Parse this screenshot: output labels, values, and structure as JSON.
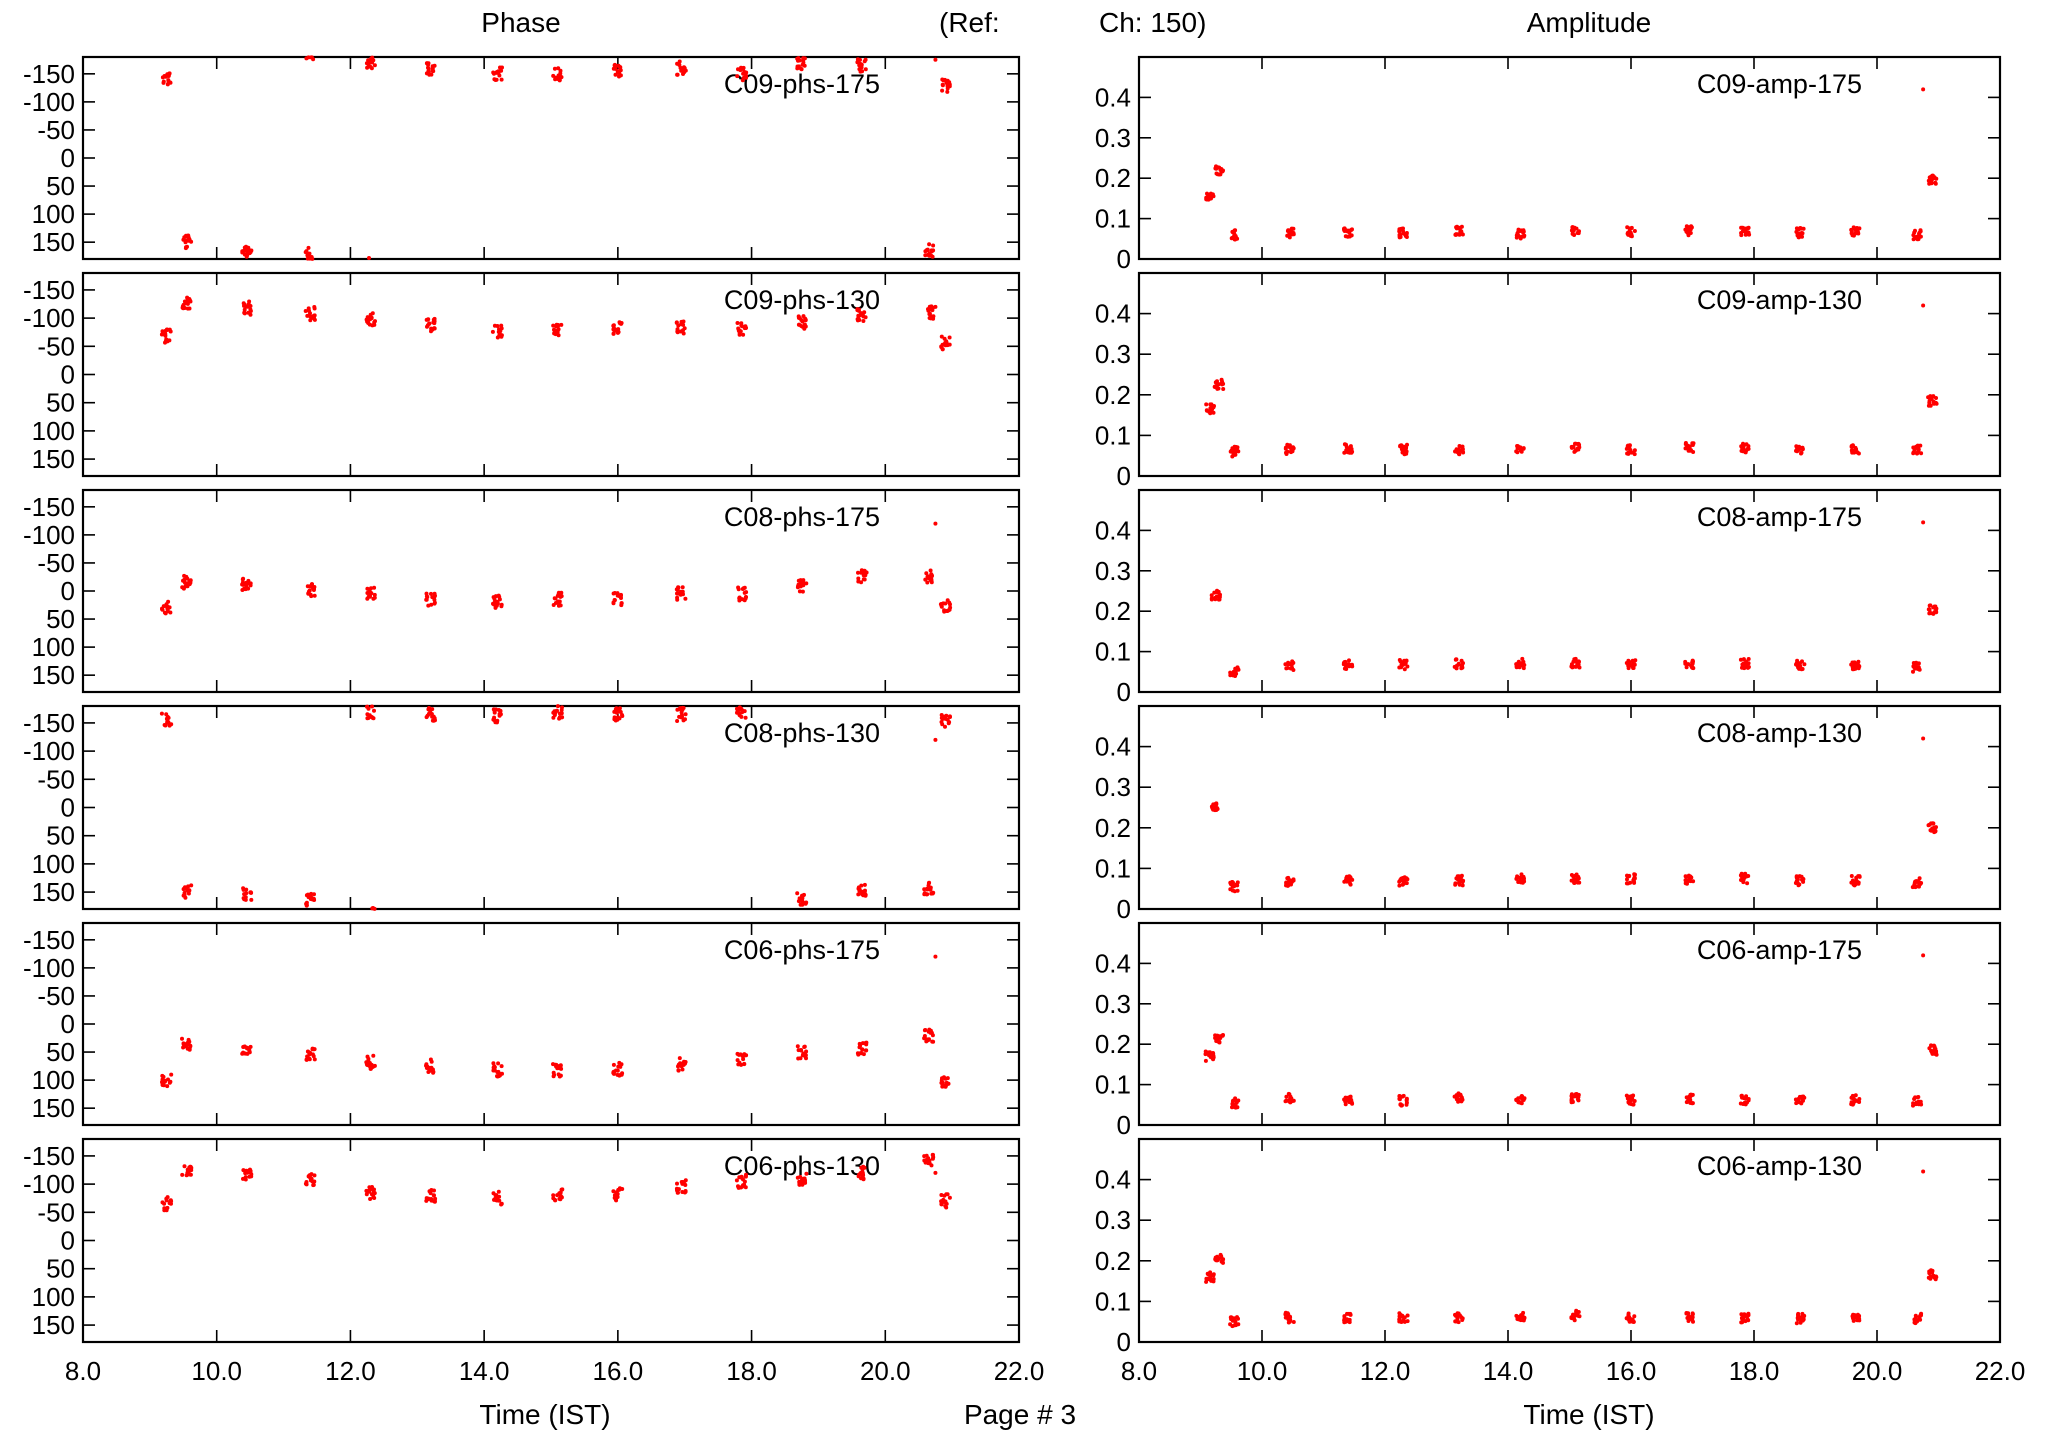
{
  "header": {
    "left_title": "Phase",
    "ref_label": "(Ref:",
    "ref_channel": "Ch: 150)",
    "right_title": "Amplitude",
    "page_label": "Page # 3"
  },
  "colors": {
    "points": "#ff0000",
    "axes": "#000000"
  },
  "chart_data": [
    {
      "type": "scatter",
      "label": "C09-phs-175",
      "xlabel": "Time (IST)",
      "xlim": [
        8.0,
        22.0
      ],
      "ylim": [
        -180,
        180
      ],
      "y_inverted": true,
      "xticks": [
        "8.0",
        "10.0",
        "12.0",
        "14.0",
        "16.0",
        "18.0",
        "20.0",
        "22.0"
      ],
      "yticks": [
        "-150",
        "-100",
        "-50",
        "0",
        "50",
        "100",
        "150"
      ],
      "clusters": [
        {
          "x": 9.25,
          "y": -143
        },
        {
          "x": 9.55,
          "y": 150
        },
        {
          "x": 10.45,
          "y": 165
        },
        {
          "x": 11.4,
          "y": 172
        },
        {
          "x": 12.3,
          "y": -170
        },
        {
          "x": 13.2,
          "y": -160
        },
        {
          "x": 14.2,
          "y": -150
        },
        {
          "x": 15.1,
          "y": -150
        },
        {
          "x": 16.0,
          "y": -155
        },
        {
          "x": 16.95,
          "y": -160
        },
        {
          "x": 17.85,
          "y": -150
        },
        {
          "x": 18.75,
          "y": -168
        },
        {
          "x": 19.65,
          "y": -165
        },
        {
          "x": 20.65,
          "y": 165
        },
        {
          "x": 20.9,
          "y": -128
        }
      ],
      "outlier": {
        "x": 20.75,
        "y": -175
      }
    },
    {
      "type": "scatter",
      "label": "C09-phs-130",
      "xlabel": "Time (IST)",
      "xlim": [
        8.0,
        22.0
      ],
      "ylim": [
        -180,
        180
      ],
      "y_inverted": true,
      "xticks": [
        "8.0",
        "10.0",
        "12.0",
        "14.0",
        "16.0",
        "18.0",
        "20.0",
        "22.0"
      ],
      "yticks": [
        "-150",
        "-100",
        "-50",
        "0",
        "50",
        "100",
        "150"
      ],
      "clusters": [
        {
          "x": 9.25,
          "y": -68
        },
        {
          "x": 9.55,
          "y": -125
        },
        {
          "x": 10.45,
          "y": -118
        },
        {
          "x": 11.4,
          "y": -108
        },
        {
          "x": 12.3,
          "y": -98
        },
        {
          "x": 13.2,
          "y": -88
        },
        {
          "x": 14.2,
          "y": -75
        },
        {
          "x": 15.1,
          "y": -80
        },
        {
          "x": 16.0,
          "y": -82
        },
        {
          "x": 16.95,
          "y": -82
        },
        {
          "x": 17.85,
          "y": -80
        },
        {
          "x": 18.75,
          "y": -92
        },
        {
          "x": 19.65,
          "y": -105
        },
        {
          "x": 20.65,
          "y": -110
        },
        {
          "x": 20.9,
          "y": -56
        }
      ],
      "outlier": {
        "x": 20.75,
        "y": -120
      }
    },
    {
      "type": "scatter",
      "label": "C08-phs-175",
      "xlabel": "Time (IST)",
      "xlim": [
        8.0,
        22.0
      ],
      "ylim": [
        -180,
        180
      ],
      "y_inverted": true,
      "xticks": [
        "8.0",
        "10.0",
        "12.0",
        "14.0",
        "16.0",
        "18.0",
        "20.0",
        "22.0"
      ],
      "yticks": [
        "-150",
        "-100",
        "-50",
        "0",
        "50",
        "100",
        "150"
      ],
      "clusters": [
        {
          "x": 9.25,
          "y": 30
        },
        {
          "x": 9.55,
          "y": -15
        },
        {
          "x": 10.45,
          "y": -12
        },
        {
          "x": 11.4,
          "y": -2
        },
        {
          "x": 12.3,
          "y": 5
        },
        {
          "x": 13.2,
          "y": 15
        },
        {
          "x": 14.2,
          "y": 20
        },
        {
          "x": 15.1,
          "y": 15
        },
        {
          "x": 16.0,
          "y": 15
        },
        {
          "x": 16.95,
          "y": 5
        },
        {
          "x": 17.85,
          "y": 5
        },
        {
          "x": 18.75,
          "y": -10
        },
        {
          "x": 19.65,
          "y": -25
        },
        {
          "x": 20.65,
          "y": -25
        },
        {
          "x": 20.9,
          "y": 28
        }
      ],
      "outlier": {
        "x": 20.75,
        "y": -120
      }
    },
    {
      "type": "scatter",
      "label": "C08-phs-130",
      "xlabel": "Time (IST)",
      "xlim": [
        8.0,
        22.0
      ],
      "ylim": [
        -180,
        180
      ],
      "y_inverted": true,
      "xticks": [
        "8.0",
        "10.0",
        "12.0",
        "14.0",
        "16.0",
        "18.0",
        "20.0",
        "22.0"
      ],
      "yticks": [
        "-150",
        "-100",
        "-50",
        "0",
        "50",
        "100",
        "150"
      ],
      "clusters": [
        {
          "x": 9.25,
          "y": -155
        },
        {
          "x": 9.55,
          "y": 150
        },
        {
          "x": 10.45,
          "y": 155
        },
        {
          "x": 11.4,
          "y": 165
        },
        {
          "x": 12.3,
          "y": -170
        },
        {
          "x": 13.2,
          "y": -165
        },
        {
          "x": 14.2,
          "y": -162
        },
        {
          "x": 15.1,
          "y": -168
        },
        {
          "x": 16.0,
          "y": -165
        },
        {
          "x": 16.95,
          "y": -165
        },
        {
          "x": 17.85,
          "y": -170
        },
        {
          "x": 18.75,
          "y": 162
        },
        {
          "x": 19.65,
          "y": 148
        },
        {
          "x": 20.65,
          "y": 145
        },
        {
          "x": 20.9,
          "y": -155
        }
      ],
      "outlier": {
        "x": 20.75,
        "y": -120
      }
    },
    {
      "type": "scatter",
      "label": "C06-phs-175",
      "xlabel": "Time (IST)",
      "xlim": [
        8.0,
        22.0
      ],
      "ylim": [
        -180,
        180
      ],
      "y_inverted": true,
      "xticks": [
        "8.0",
        "10.0",
        "12.0",
        "14.0",
        "16.0",
        "18.0",
        "20.0",
        "22.0"
      ],
      "yticks": [
        "-150",
        "-100",
        "-50",
        "0",
        "50",
        "100",
        "150"
      ],
      "clusters": [
        {
          "x": 9.25,
          "y": 100
        },
        {
          "x": 9.55,
          "y": 35
        },
        {
          "x": 10.45,
          "y": 50
        },
        {
          "x": 11.4,
          "y": 55
        },
        {
          "x": 12.3,
          "y": 68
        },
        {
          "x": 13.2,
          "y": 75
        },
        {
          "x": 14.2,
          "y": 82
        },
        {
          "x": 15.1,
          "y": 82
        },
        {
          "x": 16.0,
          "y": 80
        },
        {
          "x": 16.95,
          "y": 72
        },
        {
          "x": 17.85,
          "y": 65
        },
        {
          "x": 18.75,
          "y": 50
        },
        {
          "x": 19.65,
          "y": 45
        },
        {
          "x": 20.65,
          "y": 20
        },
        {
          "x": 20.9,
          "y": 100
        }
      ],
      "outlier": {
        "x": 20.75,
        "y": -120
      }
    },
    {
      "type": "scatter",
      "label": "C06-phs-130",
      "xlabel": "Time (IST)",
      "xlim": [
        8.0,
        22.0
      ],
      "ylim": [
        -180,
        180
      ],
      "y_inverted": true,
      "xticks": [
        "8.0",
        "10.0",
        "12.0",
        "14.0",
        "16.0",
        "18.0",
        "20.0",
        "22.0"
      ],
      "yticks": [
        "-150",
        "-100",
        "-50",
        "0",
        "50",
        "100",
        "150"
      ],
      "clusters": [
        {
          "x": 9.25,
          "y": -65
        },
        {
          "x": 9.55,
          "y": -125
        },
        {
          "x": 10.45,
          "y": -115
        },
        {
          "x": 11.4,
          "y": -108
        },
        {
          "x": 12.3,
          "y": -85
        },
        {
          "x": 13.2,
          "y": -80
        },
        {
          "x": 14.2,
          "y": -75
        },
        {
          "x": 15.1,
          "y": -80
        },
        {
          "x": 16.0,
          "y": -82
        },
        {
          "x": 16.95,
          "y": -95
        },
        {
          "x": 17.85,
          "y": -105
        },
        {
          "x": 18.75,
          "y": -110
        },
        {
          "x": 19.65,
          "y": -120
        },
        {
          "x": 20.65,
          "y": -140
        },
        {
          "x": 20.9,
          "y": -70
        }
      ],
      "outlier": {
        "x": 20.75,
        "y": -120
      }
    },
    {
      "type": "scatter",
      "label": "C09-amp-175",
      "xlabel": "Time (IST)",
      "xlim": [
        8.0,
        22.0
      ],
      "ylim": [
        0,
        0.5
      ],
      "xticks": [
        "8.0",
        "10.0",
        "12.0",
        "14.0",
        "16.0",
        "18.0",
        "20.0",
        "22.0"
      ],
      "yticks": [
        "0",
        "0.1",
        "0.2",
        "0.3",
        "0.4"
      ],
      "clusters": [
        {
          "x": 9.15,
          "y": 0.15
        },
        {
          "x": 9.3,
          "y": 0.22
        },
        {
          "x": 9.55,
          "y": 0.06
        },
        {
          "x": 10.45,
          "y": 0.065
        },
        {
          "x": 11.4,
          "y": 0.065
        },
        {
          "x": 12.3,
          "y": 0.065
        },
        {
          "x": 13.2,
          "y": 0.068
        },
        {
          "x": 14.2,
          "y": 0.062
        },
        {
          "x": 15.1,
          "y": 0.068
        },
        {
          "x": 16.0,
          "y": 0.068
        },
        {
          "x": 16.95,
          "y": 0.07
        },
        {
          "x": 17.85,
          "y": 0.068
        },
        {
          "x": 18.75,
          "y": 0.065
        },
        {
          "x": 19.65,
          "y": 0.068
        },
        {
          "x": 20.65,
          "y": 0.06
        },
        {
          "x": 20.9,
          "y": 0.195
        }
      ],
      "outlier": {
        "x": 20.75,
        "y": 0.42
      }
    },
    {
      "type": "scatter",
      "label": "C09-amp-130",
      "xlabel": "Time (IST)",
      "xlim": [
        8.0,
        22.0
      ],
      "ylim": [
        0,
        0.5
      ],
      "xticks": [
        "8.0",
        "10.0",
        "12.0",
        "14.0",
        "16.0",
        "18.0",
        "20.0",
        "22.0"
      ],
      "yticks": [
        "0",
        "0.1",
        "0.2",
        "0.3",
        "0.4"
      ],
      "clusters": [
        {
          "x": 9.15,
          "y": 0.165
        },
        {
          "x": 9.3,
          "y": 0.225
        },
        {
          "x": 9.55,
          "y": 0.06
        },
        {
          "x": 10.45,
          "y": 0.065
        },
        {
          "x": 11.4,
          "y": 0.068
        },
        {
          "x": 12.3,
          "y": 0.065
        },
        {
          "x": 13.2,
          "y": 0.065
        },
        {
          "x": 14.2,
          "y": 0.065
        },
        {
          "x": 15.1,
          "y": 0.068
        },
        {
          "x": 16.0,
          "y": 0.065
        },
        {
          "x": 16.95,
          "y": 0.07
        },
        {
          "x": 17.85,
          "y": 0.07
        },
        {
          "x": 18.75,
          "y": 0.065
        },
        {
          "x": 19.65,
          "y": 0.065
        },
        {
          "x": 20.65,
          "y": 0.065
        },
        {
          "x": 20.9,
          "y": 0.185
        }
      ],
      "outlier": {
        "x": 20.75,
        "y": 0.42
      }
    },
    {
      "type": "scatter",
      "label": "C08-amp-175",
      "xlabel": "Time (IST)",
      "xlim": [
        8.0,
        22.0
      ],
      "ylim": [
        0,
        0.5
      ],
      "xticks": [
        "8.0",
        "10.0",
        "12.0",
        "14.0",
        "16.0",
        "18.0",
        "20.0",
        "22.0"
      ],
      "yticks": [
        "0",
        "0.1",
        "0.2",
        "0.3",
        "0.4"
      ],
      "clusters": [
        {
          "x": 9.25,
          "y": 0.24
        },
        {
          "x": 9.55,
          "y": 0.05
        },
        {
          "x": 10.45,
          "y": 0.065
        },
        {
          "x": 11.4,
          "y": 0.068
        },
        {
          "x": 12.3,
          "y": 0.068
        },
        {
          "x": 13.2,
          "y": 0.07
        },
        {
          "x": 14.2,
          "y": 0.07
        },
        {
          "x": 15.1,
          "y": 0.07
        },
        {
          "x": 16.0,
          "y": 0.068
        },
        {
          "x": 16.95,
          "y": 0.07
        },
        {
          "x": 17.85,
          "y": 0.07
        },
        {
          "x": 18.75,
          "y": 0.068
        },
        {
          "x": 19.65,
          "y": 0.068
        },
        {
          "x": 20.65,
          "y": 0.062
        },
        {
          "x": 20.9,
          "y": 0.205
        }
      ],
      "outlier": {
        "x": 20.75,
        "y": 0.42
      }
    },
    {
      "type": "scatter",
      "label": "C08-amp-130",
      "xlabel": "Time (IST)",
      "xlim": [
        8.0,
        22.0
      ],
      "ylim": [
        0,
        0.5
      ],
      "xticks": [
        "8.0",
        "10.0",
        "12.0",
        "14.0",
        "16.0",
        "18.0",
        "20.0",
        "22.0"
      ],
      "yticks": [
        "0",
        "0.1",
        "0.2",
        "0.3",
        "0.4"
      ],
      "clusters": [
        {
          "x": 9.25,
          "y": 0.25
        },
        {
          "x": 9.55,
          "y": 0.055
        },
        {
          "x": 10.45,
          "y": 0.068
        },
        {
          "x": 11.4,
          "y": 0.07
        },
        {
          "x": 12.3,
          "y": 0.068
        },
        {
          "x": 13.2,
          "y": 0.07
        },
        {
          "x": 14.2,
          "y": 0.075
        },
        {
          "x": 15.1,
          "y": 0.075
        },
        {
          "x": 16.0,
          "y": 0.075
        },
        {
          "x": 16.95,
          "y": 0.072
        },
        {
          "x": 17.85,
          "y": 0.075
        },
        {
          "x": 18.75,
          "y": 0.07
        },
        {
          "x": 19.65,
          "y": 0.07
        },
        {
          "x": 20.65,
          "y": 0.065
        },
        {
          "x": 20.9,
          "y": 0.2
        }
      ],
      "outlier": {
        "x": 20.75,
        "y": 0.42
      }
    },
    {
      "type": "scatter",
      "label": "C06-amp-175",
      "xlabel": "Time (IST)",
      "xlim": [
        8.0,
        22.0
      ],
      "ylim": [
        0,
        0.5
      ],
      "xticks": [
        "8.0",
        "10.0",
        "12.0",
        "14.0",
        "16.0",
        "18.0",
        "20.0",
        "22.0"
      ],
      "yticks": [
        "0",
        "0.1",
        "0.2",
        "0.3",
        "0.4"
      ],
      "clusters": [
        {
          "x": 9.15,
          "y": 0.17
        },
        {
          "x": 9.3,
          "y": 0.215
        },
        {
          "x": 9.55,
          "y": 0.055
        },
        {
          "x": 10.45,
          "y": 0.065
        },
        {
          "x": 11.4,
          "y": 0.062
        },
        {
          "x": 12.3,
          "y": 0.06
        },
        {
          "x": 13.2,
          "y": 0.068
        },
        {
          "x": 14.2,
          "y": 0.062
        },
        {
          "x": 15.1,
          "y": 0.065
        },
        {
          "x": 16.0,
          "y": 0.062
        },
        {
          "x": 16.95,
          "y": 0.065
        },
        {
          "x": 17.85,
          "y": 0.062
        },
        {
          "x": 18.75,
          "y": 0.06
        },
        {
          "x": 19.65,
          "y": 0.062
        },
        {
          "x": 20.65,
          "y": 0.06
        },
        {
          "x": 20.9,
          "y": 0.185
        }
      ],
      "outlier": {
        "x": 20.75,
        "y": 0.42
      }
    },
    {
      "type": "scatter",
      "label": "C06-amp-130",
      "xlabel": "Time (IST)",
      "xlim": [
        8.0,
        22.0
      ],
      "ylim": [
        0,
        0.5
      ],
      "xticks": [
        "8.0",
        "10.0",
        "12.0",
        "14.0",
        "16.0",
        "18.0",
        "20.0",
        "22.0"
      ],
      "yticks": [
        "0",
        "0.1",
        "0.2",
        "0.3",
        "0.4"
      ],
      "clusters": [
        {
          "x": 9.15,
          "y": 0.16
        },
        {
          "x": 9.3,
          "y": 0.205
        },
        {
          "x": 9.55,
          "y": 0.05
        },
        {
          "x": 10.45,
          "y": 0.06
        },
        {
          "x": 11.4,
          "y": 0.058
        },
        {
          "x": 12.3,
          "y": 0.06
        },
        {
          "x": 13.2,
          "y": 0.06
        },
        {
          "x": 14.2,
          "y": 0.06
        },
        {
          "x": 15.1,
          "y": 0.065
        },
        {
          "x": 16.0,
          "y": 0.06
        },
        {
          "x": 16.95,
          "y": 0.06
        },
        {
          "x": 17.85,
          "y": 0.058
        },
        {
          "x": 18.75,
          "y": 0.058
        },
        {
          "x": 19.65,
          "y": 0.06
        },
        {
          "x": 20.65,
          "y": 0.058
        },
        {
          "x": 20.9,
          "y": 0.165
        }
      ],
      "outlier": {
        "x": 20.75,
        "y": 0.42
      }
    }
  ]
}
